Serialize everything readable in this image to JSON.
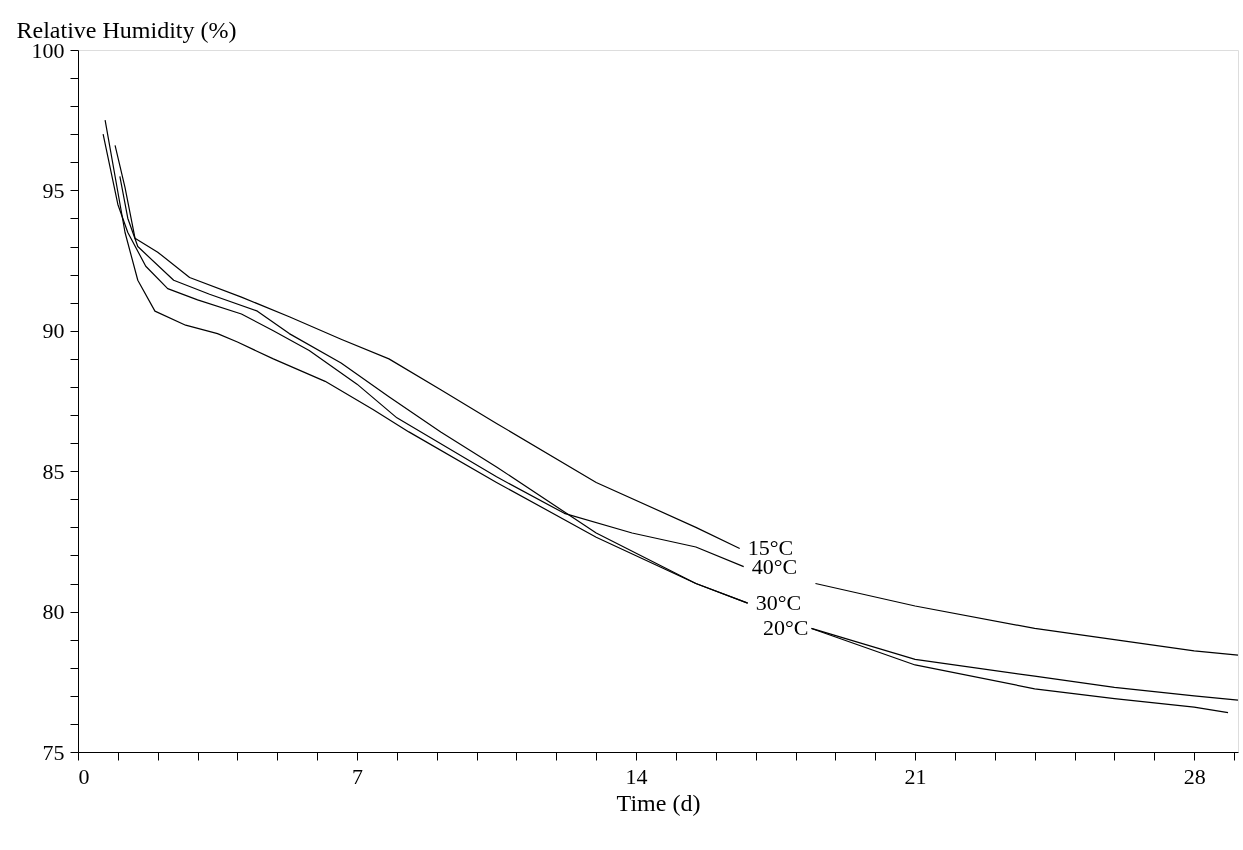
{
  "chart_data": {
    "type": "line",
    "ylabel": "Relative Humidity (%)",
    "xlabel": "Time (d)",
    "xlim": [
      0,
      29.1
    ],
    "ylim": [
      75,
      100
    ],
    "xticks": [
      0,
      {
        "value": 1,
        "label": null
      },
      {
        "value": 2,
        "label": null
      },
      {
        "value": 3,
        "label": null
      },
      {
        "value": 4,
        "label": null
      },
      {
        "value": 5,
        "label": null
      },
      {
        "value": 6,
        "label": null
      },
      7,
      {
        "value": 8,
        "label": null
      },
      {
        "value": 9,
        "label": null
      },
      {
        "value": 10,
        "label": null
      },
      {
        "value": 11,
        "label": null
      },
      {
        "value": 12,
        "label": null
      },
      {
        "value": 13,
        "label": null
      },
      14,
      {
        "value": 15,
        "label": null
      },
      {
        "value": 16,
        "label": null
      },
      {
        "value": 17,
        "label": null
      },
      {
        "value": 18,
        "label": null
      },
      {
        "value": 19,
        "label": null
      },
      {
        "value": 20,
        "label": null
      },
      21,
      {
        "value": 22,
        "label": null
      },
      {
        "value": 23,
        "label": null
      },
      {
        "value": 24,
        "label": null
      },
      {
        "value": 25,
        "label": null
      },
      {
        "value": 26,
        "label": null
      },
      {
        "value": 27,
        "label": null
      },
      28,
      {
        "value": 29,
        "label": null
      }
    ],
    "yticks": [
      75,
      {
        "value": 76,
        "label": null
      },
      {
        "value": 77,
        "label": null
      },
      {
        "value": 78,
        "label": null
      },
      {
        "value": 79,
        "label": null
      },
      80,
      {
        "value": 81,
        "label": null
      },
      {
        "value": 82,
        "label": null
      },
      {
        "value": 83,
        "label": null
      },
      {
        "value": 84,
        "label": null
      },
      85,
      {
        "value": 86,
        "label": null
      },
      {
        "value": 87,
        "label": null
      },
      {
        "value": 88,
        "label": null
      },
      {
        "value": 89,
        "label": null
      },
      90,
      {
        "value": 91,
        "label": null
      },
      {
        "value": 92,
        "label": null
      },
      {
        "value": 93,
        "label": null
      },
      {
        "value": 94,
        "label": null
      },
      95,
      {
        "value": 96,
        "label": null
      },
      {
        "value": 97,
        "label": null
      },
      {
        "value": 98,
        "label": null
      },
      {
        "value": 99,
        "label": null
      },
      100
    ],
    "grid": false,
    "legend": false,
    "marker": "none",
    "line_style": "solid",
    "series": [
      {
        "color": "#000000",
        "x": [
          0.93,
          1.18,
          1.43,
          2.0,
          2.8,
          4.1,
          5.3,
          6.6,
          7.8,
          9.1,
          10.5,
          13.0,
          15.5,
          16.6
        ],
        "values": [
          96.6,
          95.1,
          93.3,
          92.8,
          91.9,
          91.2,
          90.5,
          89.7,
          89.0,
          87.9,
          86.7,
          84.6,
          83.0,
          82.25
        ]
      },
      {
        "color": "#000000",
        "x": [
          0.63,
          1.0,
          1.25,
          1.7,
          2.25,
          3.0,
          4.1,
          4.9,
          5.8,
          7.0,
          8.0,
          10.5,
          12.2,
          13.9,
          15.5,
          16.7,
          17.6,
          18.5,
          21,
          24,
          26,
          28,
          29.1
        ],
        "values": [
          97.0,
          94.5,
          93.5,
          92.3,
          91.5,
          91.1,
          90.6,
          90.0,
          89.3,
          88.1,
          86.9,
          84.8,
          83.5,
          82.8,
          82.3,
          81.6,
          null,
          81.0,
          80.2,
          79.4,
          79.0,
          78.6,
          78.45
        ]
      },
      {
        "color": "#000000",
        "x": [
          1.05,
          1.25,
          1.5,
          2.4,
          3.3,
          4.5,
          5.3,
          6.6,
          7.8,
          9.1,
          10.5,
          13.0,
          15.5,
          16.8,
          17.6,
          18.4,
          21,
          24,
          26,
          28,
          28.85
        ],
        "values": [
          95.5,
          94.0,
          93.0,
          91.8,
          91.3,
          90.7,
          89.9,
          88.85,
          87.65,
          86.4,
          85.15,
          82.8,
          81.0,
          80.3,
          null,
          79.4,
          78.1,
          77.25,
          76.9,
          76.6,
          76.4
        ]
      },
      {
        "color": "#000000",
        "x": [
          0.68,
          1.18,
          1.5,
          1.93,
          2.7,
          3.5,
          4.0,
          4.9,
          6.2,
          7.4,
          8.3,
          10.5,
          13.0,
          15.5,
          16.8,
          17.6,
          18.4,
          21,
          24,
          26,
          28,
          29.1
        ],
        "values": [
          97.5,
          93.5,
          91.8,
          90.7,
          90.2,
          89.9,
          89.6,
          89.0,
          88.2,
          87.2,
          86.4,
          84.6,
          82.65,
          81.0,
          80.3,
          null,
          79.4,
          78.3,
          77.7,
          77.3,
          77.0,
          76.85
        ]
      }
    ],
    "annotations": [
      {
        "text": "15°C",
        "x": 16.6,
        "y": 82.25
      },
      {
        "text": "40°C",
        "x": 16.7,
        "y": 81.6
      },
      {
        "text": "30°C",
        "x": 16.8,
        "y": 80.3
      },
      {
        "text": "20°C",
        "x": 18.4,
        "y": 79.4
      }
    ]
  }
}
